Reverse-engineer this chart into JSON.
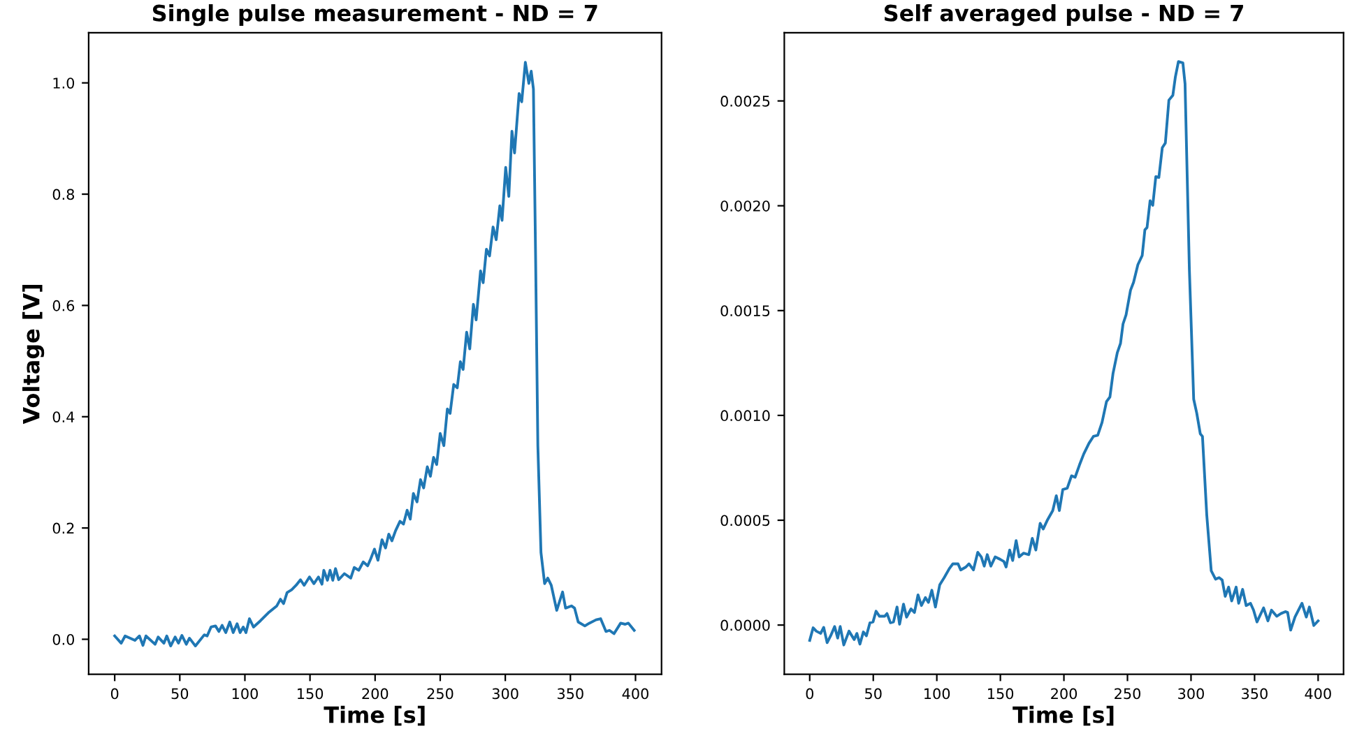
{
  "chart_data": [
    {
      "type": "line",
      "title": "Single pulse measurement - ND = 7",
      "xlabel": "Time [s]",
      "ylabel": "Voltage [V]",
      "xlim": [
        -20,
        420
      ],
      "ylim": [
        -0.063,
        1.09
      ],
      "xticks": [
        0,
        50,
        100,
        150,
        200,
        250,
        300,
        350,
        400
      ],
      "yticks": [
        {
          "value": 0,
          "label": "0.0"
        },
        0.2,
        0.4,
        0.6,
        0.8,
        {
          "value": 1,
          "label": "1.0"
        }
      ],
      "grid": false,
      "legend": false,
      "series": [
        {
          "color": "#1f77b4",
          "x": [
            0,
            5,
            8,
            15.5,
            19,
            21.7,
            24,
            31,
            33.4,
            37.8,
            40,
            43,
            46.4,
            49,
            51.6,
            55,
            57.4,
            62,
            68.8,
            71,
            74,
            77.4,
            80,
            82.5,
            85.3,
            88.4,
            91,
            94,
            96.3,
            98.7,
            100.8,
            103.5,
            106.6,
            111.8,
            118.7,
            124.5,
            127.3,
            129.7,
            132.4,
            135.9,
            139.3,
            142.7,
            145.5,
            149.6,
            153,
            156.5,
            159.2,
            160.6,
            163.4,
            165.4,
            167.5,
            169.6,
            172,
            176.4,
            181.3,
            184,
            187.4,
            190.9,
            194.3,
            196.7,
            199.5,
            202.2,
            205.3,
            208,
            210.5,
            212.9,
            215.7,
            219.1,
            221.8,
            224.6,
            227,
            229.4,
            232.2,
            234.9,
            237.3,
            240.1,
            242.5,
            244.9,
            247.3,
            250,
            252.8,
            255.5,
            257.6,
            260.4,
            263.1,
            265.5,
            267.6,
            270.3,
            272.7,
            275.5,
            277.6,
            281,
            283,
            285.5,
            287.9,
            290.6,
            293,
            295.8,
            297.5,
            300.3,
            302.7,
            305.1,
            307.1,
            310.6,
            312.6,
            315.4,
            318.1,
            319.9,
            321.6,
            323.3,
            325,
            327.4,
            330.2,
            332.6,
            335.3,
            339.5,
            344,
            346.3,
            350.8,
            353.2,
            356,
            361.1,
            364.6,
            369.7,
            373.2,
            377.3,
            380,
            383.5,
            388.6,
            392.1,
            394.5,
            399
          ],
          "values": [
            0.006,
            -0.007,
            0.006,
            -0.002,
            0.006,
            -0.011,
            0.006,
            -0.009,
            0.004,
            -0.007,
            0.006,
            -0.012,
            0.004,
            -0.007,
            0.007,
            -0.009,
            0.002,
            -0.012,
            0.008,
            0.006,
            0.022,
            0.024,
            0.014,
            0.025,
            0.012,
            0.031,
            0.012,
            0.028,
            0.012,
            0.022,
            0.012,
            0.037,
            0.022,
            0.033,
            0.049,
            0.06,
            0.072,
            0.064,
            0.084,
            0.089,
            0.097,
            0.107,
            0.097,
            0.112,
            0.1,
            0.112,
            0.099,
            0.124,
            0.106,
            0.124,
            0.106,
            0.127,
            0.107,
            0.118,
            0.11,
            0.129,
            0.124,
            0.139,
            0.132,
            0.145,
            0.162,
            0.142,
            0.179,
            0.164,
            0.189,
            0.177,
            0.195,
            0.212,
            0.207,
            0.232,
            0.216,
            0.262,
            0.247,
            0.287,
            0.272,
            0.31,
            0.293,
            0.327,
            0.314,
            0.37,
            0.348,
            0.414,
            0.406,
            0.458,
            0.452,
            0.499,
            0.485,
            0.552,
            0.522,
            0.602,
            0.574,
            0.662,
            0.641,
            0.701,
            0.689,
            0.741,
            0.718,
            0.779,
            0.753,
            0.848,
            0.796,
            0.913,
            0.874,
            0.981,
            0.966,
            1.037,
            0.999,
            1.021,
            0.989,
            0.681,
            0.348,
            0.156,
            0.1,
            0.11,
            0.097,
            0.052,
            0.085,
            0.056,
            0.06,
            0.056,
            0.031,
            0.024,
            0.029,
            0.035,
            0.037,
            0.014,
            0.016,
            0.01,
            0.029,
            0.027,
            0.029,
            0.016
          ]
        }
      ]
    },
    {
      "type": "line",
      "title": "Self averaged pulse - ND = 7",
      "xlabel": "Time [s]",
      "xlim": [
        -20,
        420
      ],
      "ylim": [
        -0.000235,
        0.002825
      ],
      "xticks": [
        0,
        50,
        100,
        150,
        200,
        250,
        300,
        350,
        400
      ],
      "yticks": [
        {
          "value": 0,
          "label": "0.0000"
        },
        {
          "value": 0.0005,
          "label": "0.0005"
        },
        {
          "value": 0.001,
          "label": "0.0010"
        },
        {
          "value": 0.0015,
          "label": "0.0015"
        },
        {
          "value": 0.002,
          "label": "0.0020"
        },
        {
          "value": 0.0025,
          "label": "0.0025"
        }
      ],
      "grid": false,
      "legend": false,
      "series": [
        {
          "color": "#1f77b4",
          "x": [
            0,
            2.7,
            5.2,
            8.6,
            11,
            13.7,
            16.5,
            19.6,
            22,
            24,
            26.8,
            30.9,
            35,
            37.1,
            39.5,
            42.2,
            44.6,
            47.4,
            49.8,
            52.2,
            54.9,
            59,
            60.8,
            63.5,
            65.9,
            68.7,
            70.7,
            73.8,
            76.2,
            79.7,
            82.4,
            85.2,
            87.9,
            91,
            93.4,
            96.1,
            98.9,
            102.3,
            105.8,
            109.9,
            112.6,
            116.7,
            118.8,
            122.9,
            125.3,
            128.8,
            132.2,
            135,
            137.3,
            139.7,
            142.5,
            145.9,
            149.7,
            152.8,
            154.5,
            157.3,
            159.7,
            162.4,
            164.8,
            168.2,
            172.4,
            175.1,
            177.9,
            181.3,
            183.7,
            187.1,
            191.2,
            194,
            196.4,
            199.1,
            202.6,
            206,
            208.8,
            212.2,
            215.6,
            219.7,
            223.2,
            226.6,
            230,
            233.5,
            236.2,
            238.6,
            242,
            244.5,
            246.5,
            248.9,
            252.4,
            254.8,
            258.2,
            261.6,
            263.7,
            265.4,
            267.8,
            269.9,
            272.3,
            274.7,
            277.4,
            279.8,
            282.6,
            285.7,
            287.7,
            290.1,
            293.6,
            295.3,
            298.7,
            302.1,
            304.5,
            307.3,
            309,
            312.4,
            315.9,
            319.3,
            322.1,
            324.5,
            326.9,
            329.6,
            332,
            335.5,
            337.5,
            340.6,
            343.4,
            346.8,
            349.2,
            351.9,
            357.1,
            360.5,
            363.3,
            367.4,
            370.8,
            374.2,
            376,
            378.4,
            381.8,
            387.3,
            390.7,
            393.1,
            396.6,
            400
          ],
          "values": [
            -7.3e-05,
            -1.3e-05,
            -2.9e-05,
            -4e-05,
            -1.1e-05,
            -8.4e-05,
            -5.1e-05,
            -7e-06,
            -6.2e-05,
            -7e-06,
            -9.5e-05,
            -2.9e-05,
            -6.9e-05,
            -4e-05,
            -9.1e-05,
            -3.3e-05,
            -5.1e-05,
            1.1e-05,
            1.5e-05,
            6.6e-05,
            4.2e-05,
            4.2e-05,
            5.5e-05,
            1.1e-05,
            1.5e-05,
            8.6e-05,
            4e-06,
            0.0001,
            3.8e-05,
            7.7e-05,
            6e-05,
            0.000144,
            9.3e-05,
            0.000131,
            0.000108,
            0.000166,
            8.6e-05,
            0.000192,
            0.000226,
            0.00027,
            0.000292,
            0.000292,
            0.000263,
            0.000277,
            0.000292,
            0.000263,
            0.000347,
            0.000325,
            0.000281,
            0.000336,
            0.000281,
            0.000325,
            0.000314,
            0.000303,
            0.000277,
            0.000358,
            0.000308,
            0.000403,
            0.000325,
            0.000343,
            0.000336,
            0.000414,
            0.000358,
            0.000485,
            0.000458,
            0.000502,
            0.000546,
            0.000617,
            0.000546,
            0.000646,
            0.000653,
            0.000712,
            0.000705,
            0.000763,
            0.000816,
            0.000867,
            0.0009,
            0.000905,
            0.000967,
            0.001066,
            0.001088,
            0.001199,
            0.001299,
            0.001343,
            0.001436,
            0.00148,
            0.001597,
            0.001635,
            0.001719,
            0.001763,
            0.001885,
            0.001896,
            0.002024,
            0.002002,
            0.002139,
            0.002135,
            0.002277,
            0.002299,
            0.002504,
            0.002527,
            0.002615,
            0.002688,
            0.002681,
            0.002582,
            0.001697,
            0.001077,
            0.001011,
            0.000912,
            0.0009,
            0.000524,
            0.000259,
            0.000219,
            0.000226,
            0.000215,
            0.000137,
            0.000181,
            0.000115,
            0.000181,
            0.000104,
            0.00017,
            9.3e-05,
            0.000104,
            7.1e-05,
            1.5e-05,
            8.2e-05,
            2e-05,
            7.1e-05,
            4.2e-05,
            5.5e-05,
            6.4e-05,
            6e-05,
            -2.4e-05,
            3.8e-05,
            0.000104,
            3.8e-05,
            8.6e-05,
            -2e-06,
            2e-05
          ]
        }
      ]
    }
  ]
}
